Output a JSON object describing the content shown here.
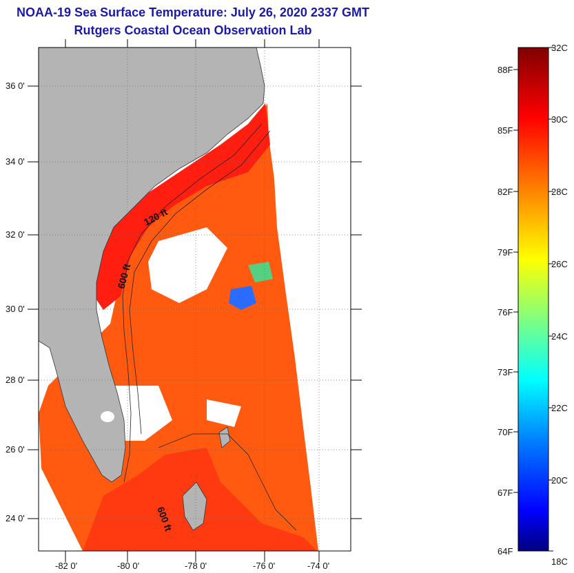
{
  "header": {
    "title": "NOAA-19 Sea Surface Temperature:  July 26, 2020 2337 GMT",
    "subtitle": "Rutgers Coastal Ocean Observation Lab"
  },
  "map": {
    "lon_ticks": [
      "-82 0'",
      "-80 0'",
      "-78 0'",
      "-76 0'",
      "-74 0'"
    ],
    "lat_ticks": [
      "36 0'",
      "34 0'",
      "32 0'",
      "30 0'",
      "28 0'",
      "26 0'",
      "24 0'"
    ],
    "contour_labels": [
      "120 ft",
      "600 ft",
      "600 ft"
    ],
    "land_color": "#b4b4b4",
    "no_data_color": "#ffffff"
  },
  "colorbar": {
    "fahrenheit_labels": [
      "88F",
      "85F",
      "82F",
      "79F",
      "76F",
      "73F",
      "70F",
      "67F",
      "64F"
    ],
    "celsius_labels": [
      "32C",
      "30C",
      "28C",
      "26C",
      "24C",
      "22C",
      "20C",
      "18C"
    ],
    "colors": [
      "#800000",
      "#ff0000",
      "#ff8000",
      "#ffff00",
      "#80ff80",
      "#00ffff",
      "#0080ff",
      "#0000ff",
      "#000080"
    ]
  }
}
